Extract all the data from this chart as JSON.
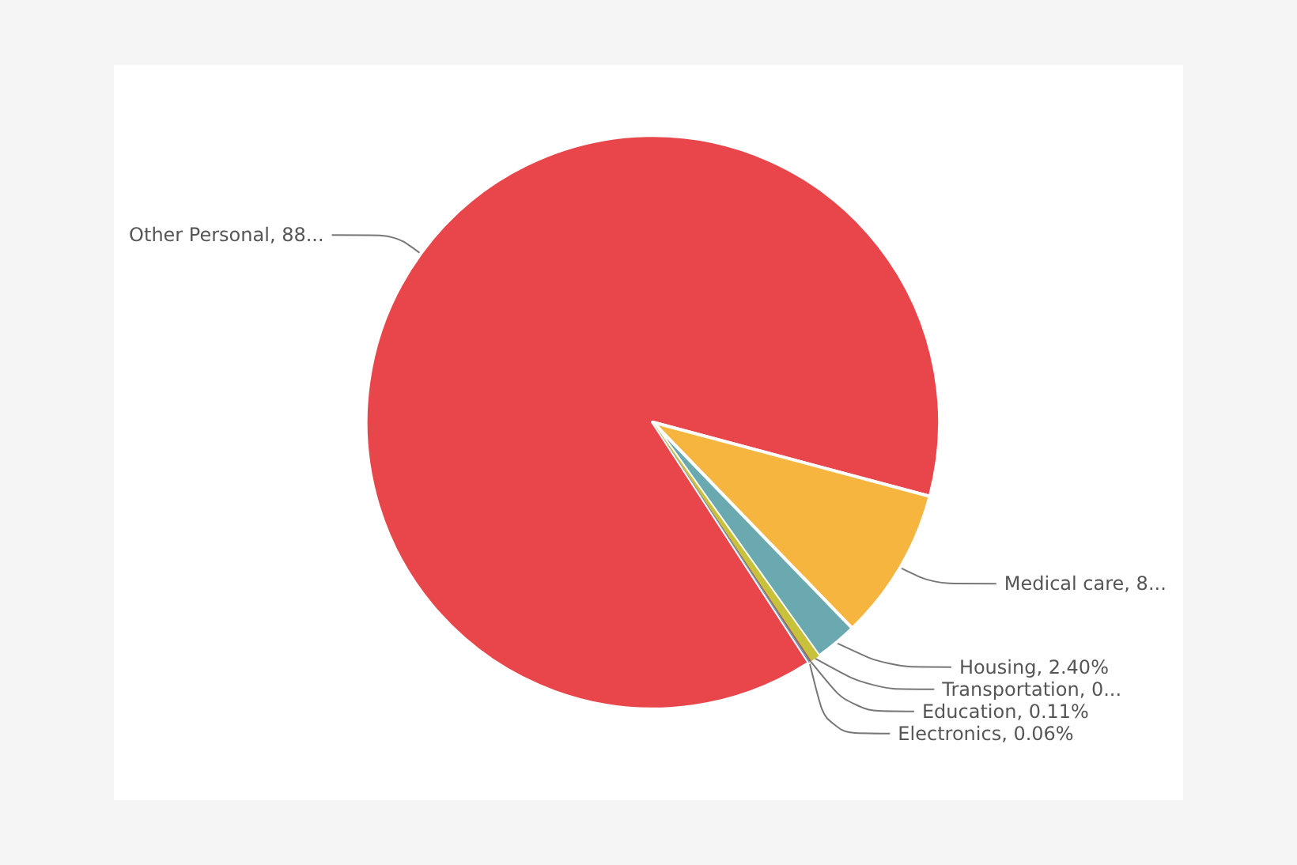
{
  "chart_data": {
    "type": "pie",
    "categories": [
      "Other Personal",
      "Medical care",
      "Housing",
      "Transportation",
      "Education",
      "Electronics"
    ],
    "values": [
      88.33,
      8.6,
      2.4,
      0.5,
      0.11,
      0.06
    ],
    "colors": [
      "#e8464a",
      "#f5b53f",
      "#6aa9b0",
      "#c8c23a",
      "#9a6a4a",
      "#5b8cc4"
    ],
    "value_labels": [
      "88...",
      "8...",
      "2.40%",
      "0...",
      "0.11%",
      "0.06%"
    ],
    "legend": false
  }
}
